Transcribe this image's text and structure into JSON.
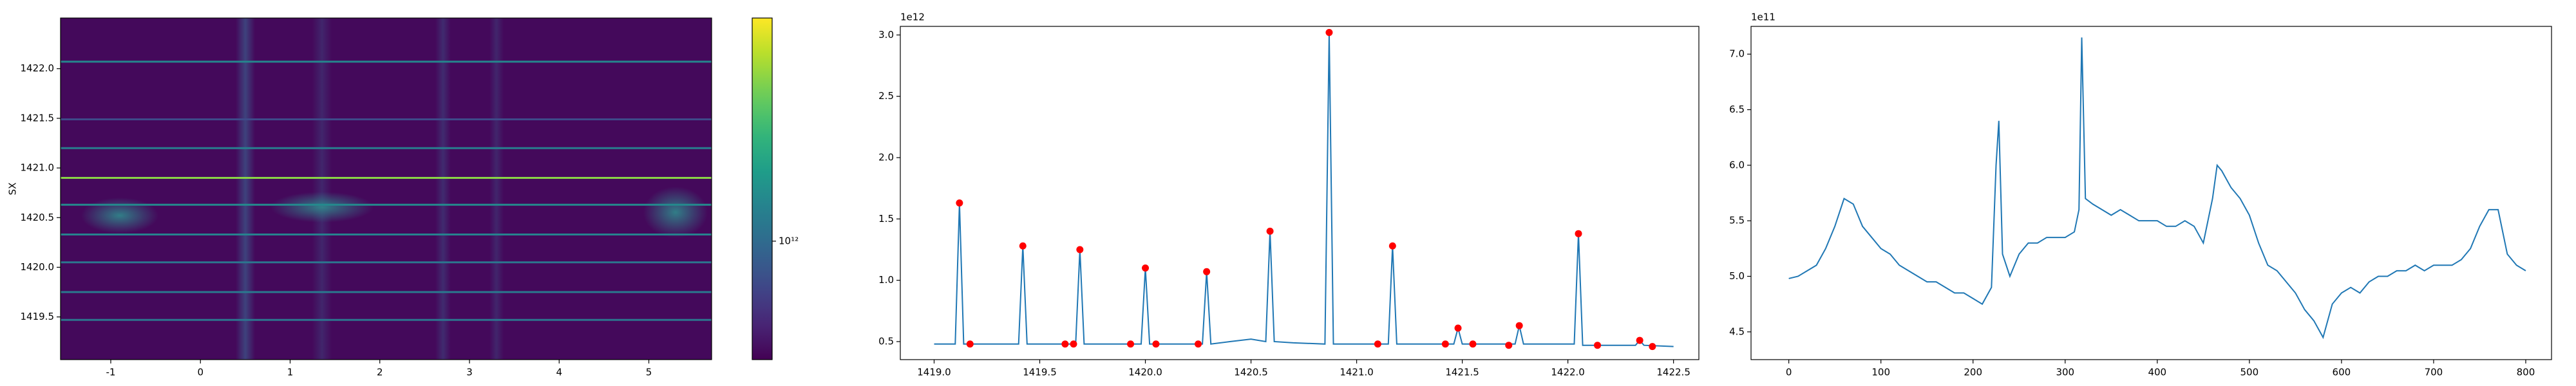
{
  "chart_data": [
    {
      "type": "heatmap",
      "ylabel": "SX",
      "xlim": [
        -1.56,
        5.7
      ],
      "xticks": [
        -1,
        0,
        1,
        2,
        3,
        4,
        5
      ],
      "ylim": [
        1419.07,
        1422.51
      ],
      "yticks": [
        1419.5,
        {
          "value": 1420,
          "label": "1420.0"
        },
        1420.5,
        {
          "value": 1421,
          "label": "1421.0"
        },
        1421.5,
        {
          "value": 1422,
          "label": "1422.0"
        }
      ],
      "rows_y": [
        1419.47,
        1419.75,
        1420.05,
        1420.33,
        1420.63,
        1420.9,
        1421.2,
        1421.49,
        1422.07
      ],
      "row_values": [
        1100000000000.0,
        1150000000000.0,
        1100000000000.0,
        1250000000000.0,
        1350000000000.0,
        3000000000000.0,
        1200000000000.0,
        750000000000.0,
        1300000000000.0
      ],
      "colormap": "viridis",
      "color_scale": "log",
      "clim": [
        450000000000.0,
        4500000000000.0
      ],
      "cticks": [
        {
          "value": 1000000000000.0,
          "label": "10¹²"
        }
      ]
    },
    {
      "type": "line",
      "offset_text": "1e12",
      "xlim": [
        1418.84,
        1422.62
      ],
      "xticks": [
        {
          "value": 1419,
          "label": "1419.0"
        },
        1419.5,
        {
          "value": 1420,
          "label": "1420.0"
        },
        1420.5,
        {
          "value": 1421,
          "label": "1421.0"
        },
        1421.5,
        {
          "value": 1422,
          "label": "1422.0"
        },
        1422.5
      ],
      "ylim": [
        0.353,
        3.07
      ],
      "yticks": [
        0.5,
        {
          "value": 1,
          "label": "1.0"
        },
        1.5,
        {
          "value": 2,
          "label": "2.0"
        },
        2.5,
        {
          "value": 3,
          "label": "3.0"
        }
      ],
      "series": [
        {
          "color": "#1f77b4",
          "x": [
            1419.0,
            1419.1,
            1419.12,
            1419.14,
            1419.4,
            1419.42,
            1419.44,
            1419.67,
            1419.69,
            1419.71,
            1419.98,
            1420.0,
            1420.02,
            1420.27,
            1420.29,
            1420.31,
            1420.4,
            1420.5,
            1420.57,
            1420.59,
            1420.61,
            1420.7,
            1420.85,
            1420.87,
            1420.89,
            1421.15,
            1421.17,
            1421.19,
            1421.46,
            1421.48,
            1421.5,
            1421.75,
            1421.77,
            1421.79,
            1422.03,
            1422.05,
            1422.07,
            1422.32,
            1422.34,
            1422.36,
            1422.5
          ],
          "values": [
            0.48,
            0.48,
            1.63,
            0.48,
            0.48,
            1.28,
            0.48,
            0.48,
            1.25,
            0.48,
            0.48,
            1.1,
            0.48,
            0.48,
            1.07,
            0.48,
            0.5,
            0.52,
            0.5,
            1.4,
            0.5,
            0.49,
            0.48,
            3.02,
            0.48,
            0.48,
            1.28,
            0.48,
            0.48,
            0.61,
            0.48,
            0.48,
            0.63,
            0.48,
            0.48,
            1.38,
            0.47,
            0.47,
            0.51,
            0.47,
            0.46
          ]
        },
        {
          "color": "red",
          "marker": "o",
          "x": [
            1419.12,
            1419.17,
            1419.42,
            1419.62,
            1419.66,
            1419.69,
            1419.93,
            1420.0,
            1420.05,
            1420.25,
            1420.29,
            1420.59,
            1420.87,
            1421.1,
            1421.17,
            1421.42,
            1421.48,
            1421.55,
            1421.72,
            1421.77,
            1422.05,
            1422.14,
            1422.34,
            1422.4
          ],
          "values": [
            1.63,
            0.48,
            1.28,
            0.48,
            0.48,
            1.25,
            0.48,
            1.1,
            0.48,
            0.48,
            1.07,
            1.4,
            3.02,
            0.48,
            1.28,
            0.48,
            0.61,
            0.48,
            0.47,
            0.63,
            1.38,
            0.47,
            0.51,
            0.46
          ]
        }
      ]
    },
    {
      "type": "line",
      "offset_text": "1e11",
      "xlim": [
        -41,
        828
      ],
      "xticks": [
        0,
        100,
        200,
        300,
        400,
        500,
        600,
        700,
        800
      ],
      "ylim": [
        4.25,
        7.25
      ],
      "yticks": [
        4.5,
        {
          "value": 5,
          "label": "5.0"
        },
        5.5,
        {
          "value": 6,
          "label": "6.0"
        },
        6.5,
        {
          "value": 7,
          "label": "7.0"
        }
      ],
      "series": [
        {
          "color": "#1f77b4",
          "x": [
            0,
            10,
            20,
            30,
            40,
            50,
            60,
            70,
            80,
            90,
            100,
            110,
            120,
            130,
            140,
            150,
            160,
            170,
            180,
            190,
            200,
            210,
            220,
            225,
            228,
            232,
            240,
            250,
            260,
            270,
            280,
            290,
            300,
            310,
            315,
            318,
            322,
            330,
            340,
            350,
            360,
            370,
            380,
            390,
            400,
            410,
            420,
            430,
            440,
            450,
            460,
            465,
            470,
            480,
            490,
            500,
            510,
            520,
            530,
            540,
            550,
            560,
            570,
            580,
            590,
            600,
            610,
            620,
            630,
            640,
            650,
            660,
            670,
            680,
            690,
            700,
            710,
            720,
            730,
            740,
            750,
            760,
            770,
            780,
            790,
            800
          ],
          "values": [
            4.98,
            5.0,
            5.05,
            5.1,
            5.25,
            5.45,
            5.7,
            5.65,
            5.45,
            5.35,
            5.25,
            5.2,
            5.1,
            5.05,
            5.0,
            4.95,
            4.95,
            4.9,
            4.85,
            4.85,
            4.8,
            4.75,
            4.9,
            6.0,
            6.4,
            5.2,
            5.0,
            5.2,
            5.3,
            5.3,
            5.35,
            5.35,
            5.35,
            5.4,
            5.6,
            7.15,
            5.7,
            5.65,
            5.6,
            5.55,
            5.6,
            5.55,
            5.5,
            5.5,
            5.5,
            5.45,
            5.45,
            5.5,
            5.45,
            5.3,
            5.7,
            6.0,
            5.95,
            5.8,
            5.7,
            5.55,
            5.3,
            5.1,
            5.05,
            4.95,
            4.85,
            4.7,
            4.6,
            4.45,
            4.75,
            4.85,
            4.9,
            4.85,
            4.95,
            5.0,
            5.0,
            5.05,
            5.05,
            5.1,
            5.05,
            5.1,
            5.1,
            5.1,
            5.15,
            5.25,
            5.45,
            5.6,
            5.6,
            5.2,
            5.1,
            5.05
          ]
        }
      ]
    }
  ]
}
